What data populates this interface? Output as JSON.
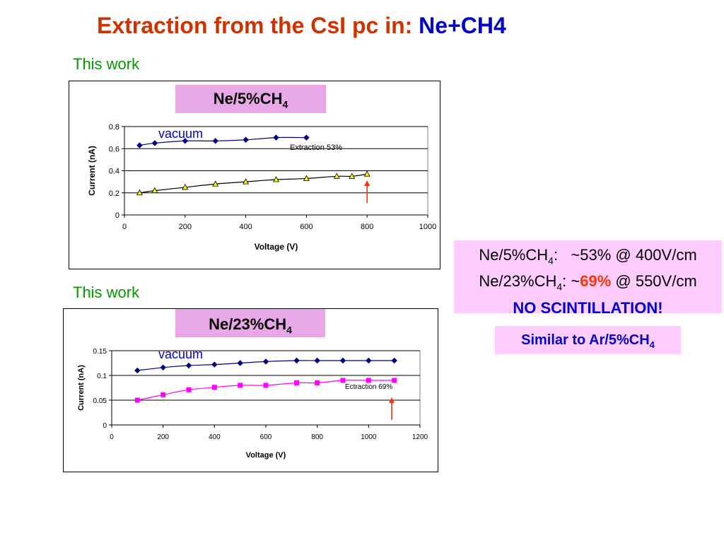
{
  "slide": {
    "title_part1": "Extraction from the CsI pc in: ",
    "title_part2": "Ne+CH4",
    "this_work_1": "This work",
    "this_work_2": "This work",
    "info": {
      "line1_gas": "Ne/5%CH",
      "line1_sub": "4",
      "line1_rest": ":   ~53% @ 400V/cm",
      "line2_gas": "Ne/23%CH",
      "line2_sub": "4",
      "line2_pre": ": ~",
      "line2_highlight": "69%",
      "line2_rest": " @ 550V/cm",
      "line3": "NO SCINTILLATION!"
    },
    "similar": {
      "text": "Similar to Ar/5%CH",
      "sub": "4"
    }
  },
  "chart_data": [
    {
      "type": "line",
      "label_main": "Ne/5%CH",
      "label_sub": "4",
      "xlabel": "Voltage (V)",
      "ylabel": "Current (nA)",
      "xlim": [
        0,
        1000
      ],
      "ylim": [
        0,
        0.8
      ],
      "xticks": [
        0,
        200,
        400,
        600,
        800,
        1000
      ],
      "yticks": [
        0,
        0.2,
        0.4,
        0.6,
        0.8
      ],
      "ytick_labels": [
        "0",
        "0.2",
        "0.4",
        "0.6",
        "0.8"
      ],
      "grid": "horizontal",
      "series": [
        {
          "name": "vacuum",
          "color": "#000080",
          "marker": "diamond",
          "x": [
            50,
            100,
            200,
            300,
            400,
            500,
            600
          ],
          "y": [
            0.63,
            0.65,
            0.67,
            0.67,
            0.68,
            0.7,
            0.7
          ]
        },
        {
          "name": "",
          "color": "#000000",
          "marker": "triangle",
          "marker_color": "#ffff00",
          "x": [
            50,
            100,
            200,
            300,
            400,
            500,
            600,
            700,
            750,
            800
          ],
          "y": [
            0.2,
            0.22,
            0.25,
            0.28,
            0.3,
            0.32,
            0.33,
            0.35,
            0.35,
            0.37
          ]
        }
      ],
      "annotation": "Extraction 53%",
      "arrow_x": 800
    },
    {
      "type": "line",
      "label_main": "Ne/23%CH",
      "label_sub": "4",
      "xlabel": "Voltage (V)",
      "ylabel": "Current (nA)",
      "xlim": [
        0,
        1200
      ],
      "ylim": [
        0,
        0.15
      ],
      "xticks": [
        0,
        200,
        400,
        600,
        800,
        1000,
        1200
      ],
      "yticks": [
        0,
        0.05,
        0.1,
        0.15
      ],
      "ytick_labels": [
        "0",
        "0.05",
        "0.1",
        "0.15"
      ],
      "grid": "horizontal",
      "series": [
        {
          "name": "vacuum",
          "color": "#000080",
          "marker": "diamond",
          "x": [
            100,
            200,
            300,
            400,
            500,
            600,
            720,
            800,
            900,
            1000,
            1100
          ],
          "y": [
            0.11,
            0.116,
            0.12,
            0.122,
            0.125,
            0.128,
            0.13,
            0.13,
            0.13,
            0.13,
            0.13
          ]
        },
        {
          "name": "",
          "color": "#ff00ff",
          "marker": "square",
          "x": [
            100,
            200,
            300,
            400,
            500,
            600,
            720,
            800,
            900,
            1000,
            1100
          ],
          "y": [
            0.05,
            0.061,
            0.071,
            0.076,
            0.08,
            0.08,
            0.085,
            0.085,
            0.09,
            0.09,
            0.09
          ]
        }
      ],
      "annotation": "Ectraction 69%",
      "arrow_x": 1090
    }
  ]
}
